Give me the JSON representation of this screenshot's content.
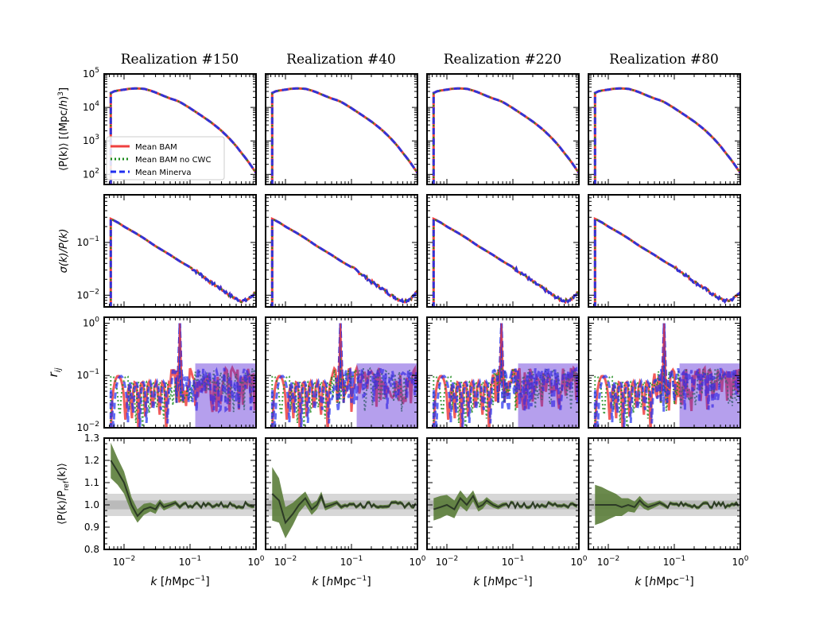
{
  "colors": {
    "bam": "#ef4040",
    "bam_nocwc": "#1a8a1a",
    "minerva": "#1f2ef0",
    "ratio_line": "#2c3a26",
    "ratio_band": "#5b7d3a",
    "gray_band": "#bdbdbd"
  },
  "chart_data": {
    "type": "line",
    "panel_titles": [
      "Realization #150",
      "Realization #40",
      "Realization #220",
      "Realization #80"
    ],
    "xlabel_parts": [
      "k",
      "[",
      "h",
      "Mpc",
      "−1",
      "]"
    ],
    "x_scale": "log",
    "xlim": [
      0.005,
      1.0
    ],
    "x_ticks": [
      {
        "value": 0.01,
        "base": "10",
        "exp": "−2"
      },
      {
        "value": 0.1,
        "base": "10",
        "exp": "−1"
      },
      {
        "value": 1.0,
        "base": "10",
        "exp": "0"
      }
    ],
    "legend": {
      "location": "lower-left",
      "panel": "Realization #150, row 1",
      "entries": [
        "Mean BAM",
        "Mean BAM no CWC",
        "Mean Minerva"
      ]
    },
    "rows": [
      {
        "name": "power_spectrum",
        "ylabel": "⟨P(k)⟩ [(Mpc/h)³]",
        "ylabel_parts": [
          "⟨P(k)⟩ [(Mpc/",
          "h",
          ")",
          "3",
          "]"
        ],
        "y_scale": "log",
        "ylim": [
          50,
          100000
        ],
        "y_ticks": [
          {
            "value": 100,
            "base": "10",
            "exp": "2"
          },
          {
            "value": 1000,
            "base": "10",
            "exp": "3"
          },
          {
            "value": 10000,
            "base": "10",
            "exp": "4"
          },
          {
            "value": 100000,
            "base": "10",
            "exp": "5"
          }
        ],
        "k": [
          0.0063,
          0.007,
          0.008,
          0.01,
          0.012,
          0.015,
          0.02,
          0.025,
          0.03,
          0.04,
          0.05,
          0.06,
          0.07,
          0.08,
          0.1,
          0.12,
          0.15,
          0.2,
          0.25,
          0.3,
          0.4,
          0.5,
          0.6,
          0.7,
          0.8,
          0.9,
          1.0
        ],
        "values": [
          27000,
          30000,
          32000,
          34000,
          36000,
          37000,
          36000,
          32000,
          28000,
          22000,
          18500,
          16500,
          14500,
          12500,
          9500,
          7500,
          5600,
          3800,
          2700,
          2000,
          1150,
          700,
          440,
          300,
          210,
          150,
          110
        ]
      },
      {
        "name": "relative_error",
        "ylabel": "σ(k)/P(k)",
        "y_scale": "log",
        "ylim": [
          0.006,
          0.8
        ],
        "y_ticks": [
          {
            "value": 0.01,
            "base": "10",
            "exp": "−2"
          },
          {
            "value": 0.1,
            "base": "10",
            "exp": "−1"
          }
        ],
        "k": [
          0.0063,
          0.008,
          0.01,
          0.015,
          0.02,
          0.03,
          0.05,
          0.07,
          0.1,
          0.15,
          0.2,
          0.3,
          0.4,
          0.5,
          0.6,
          0.7,
          0.8,
          0.9,
          1.0
        ],
        "values": [
          0.28,
          0.24,
          0.2,
          0.15,
          0.12,
          0.085,
          0.058,
          0.044,
          0.034,
          0.024,
          0.018,
          0.013,
          0.01,
          0.0085,
          0.0078,
          0.008,
          0.0088,
          0.01,
          0.012
        ]
      },
      {
        "name": "correlation",
        "ylabel": "r_ij",
        "ylabel_parts": [
          "r",
          "ij"
        ],
        "y_scale": "log",
        "ylim": [
          0.01,
          1.3
        ],
        "y_ticks": [
          {
            "value": 0.01,
            "base": "10",
            "exp": "−2"
          },
          {
            "value": 0.1,
            "base": "10",
            "exp": "−1"
          },
          {
            "value": 1,
            "base": "10",
            "exp": "0"
          }
        ],
        "peak_k": [
          0.07,
          0.068,
          0.067,
          0.07
        ]
      },
      {
        "name": "ratio",
        "ylabel": "⟨P(k)/P_ref(k)⟩",
        "ylabel_parts": [
          "⟨P(k)/P",
          "ref",
          "(k)⟩"
        ],
        "y_scale": "linear",
        "ylim": [
          0.8,
          1.3
        ],
        "y_ticks": [
          {
            "value": 0.8,
            "label": "0.8"
          },
          {
            "value": 0.9,
            "label": "0.9"
          },
          {
            "value": 1.0,
            "label": "1.0"
          },
          {
            "value": 1.1,
            "label": "1.1"
          },
          {
            "value": 1.2,
            "label": "1.2"
          },
          {
            "value": 1.3,
            "label": "1.3"
          }
        ],
        "gray_bands": [
          [
            0.95,
            1.05
          ],
          [
            0.98,
            1.02
          ]
        ],
        "k": [
          0.0063,
          0.008,
          0.01,
          0.013,
          0.016,
          0.02,
          0.025,
          0.03,
          0.035,
          0.04,
          0.05,
          0.06,
          0.07
        ],
        "panels": [
          {
            "mean": [
              1.2,
              1.15,
              1.1,
              1.0,
              0.95,
              0.98,
              0.99,
              0.98,
              1.01,
              0.99,
              1.0,
              1.01,
              0.99
            ],
            "half_width": [
              0.08,
              0.06,
              0.05,
              0.035,
              0.03,
              0.025,
              0.02,
              0.02,
              0.015,
              0.015,
              0.012,
              0.01,
              0.01
            ]
          },
          {
            "mean": [
              1.05,
              1.02,
              0.92,
              0.96,
              1.0,
              1.03,
              0.98,
              1.0,
              1.04,
              0.99,
              1.0,
              1.01,
              0.99
            ],
            "half_width": [
              0.12,
              0.1,
              0.07,
              0.05,
              0.035,
              0.03,
              0.025,
              0.02,
              0.02,
              0.015,
              0.012,
              0.01,
              0.01
            ]
          },
          {
            "mean": [
              0.98,
              0.99,
              1.0,
              0.98,
              1.03,
              1.0,
              1.04,
              0.99,
              1.0,
              1.02,
              1.0,
              0.99,
              1.0
            ],
            "half_width": [
              0.05,
              0.05,
              0.045,
              0.04,
              0.035,
              0.03,
              0.025,
              0.02,
              0.018,
              0.015,
              0.012,
              0.01,
              0.01
            ]
          },
          {
            "mean": [
              1.0,
              1.0,
              1.0,
              1.0,
              0.99,
              1.0,
              0.99,
              1.02,
              1.0,
              0.99,
              1.0,
              1.01,
              1.0
            ],
            "half_width": [
              0.09,
              0.08,
              0.065,
              0.05,
              0.04,
              0.03,
              0.025,
              0.02,
              0.018,
              0.015,
              0.012,
              0.01,
              0.01
            ]
          }
        ]
      }
    ]
  }
}
